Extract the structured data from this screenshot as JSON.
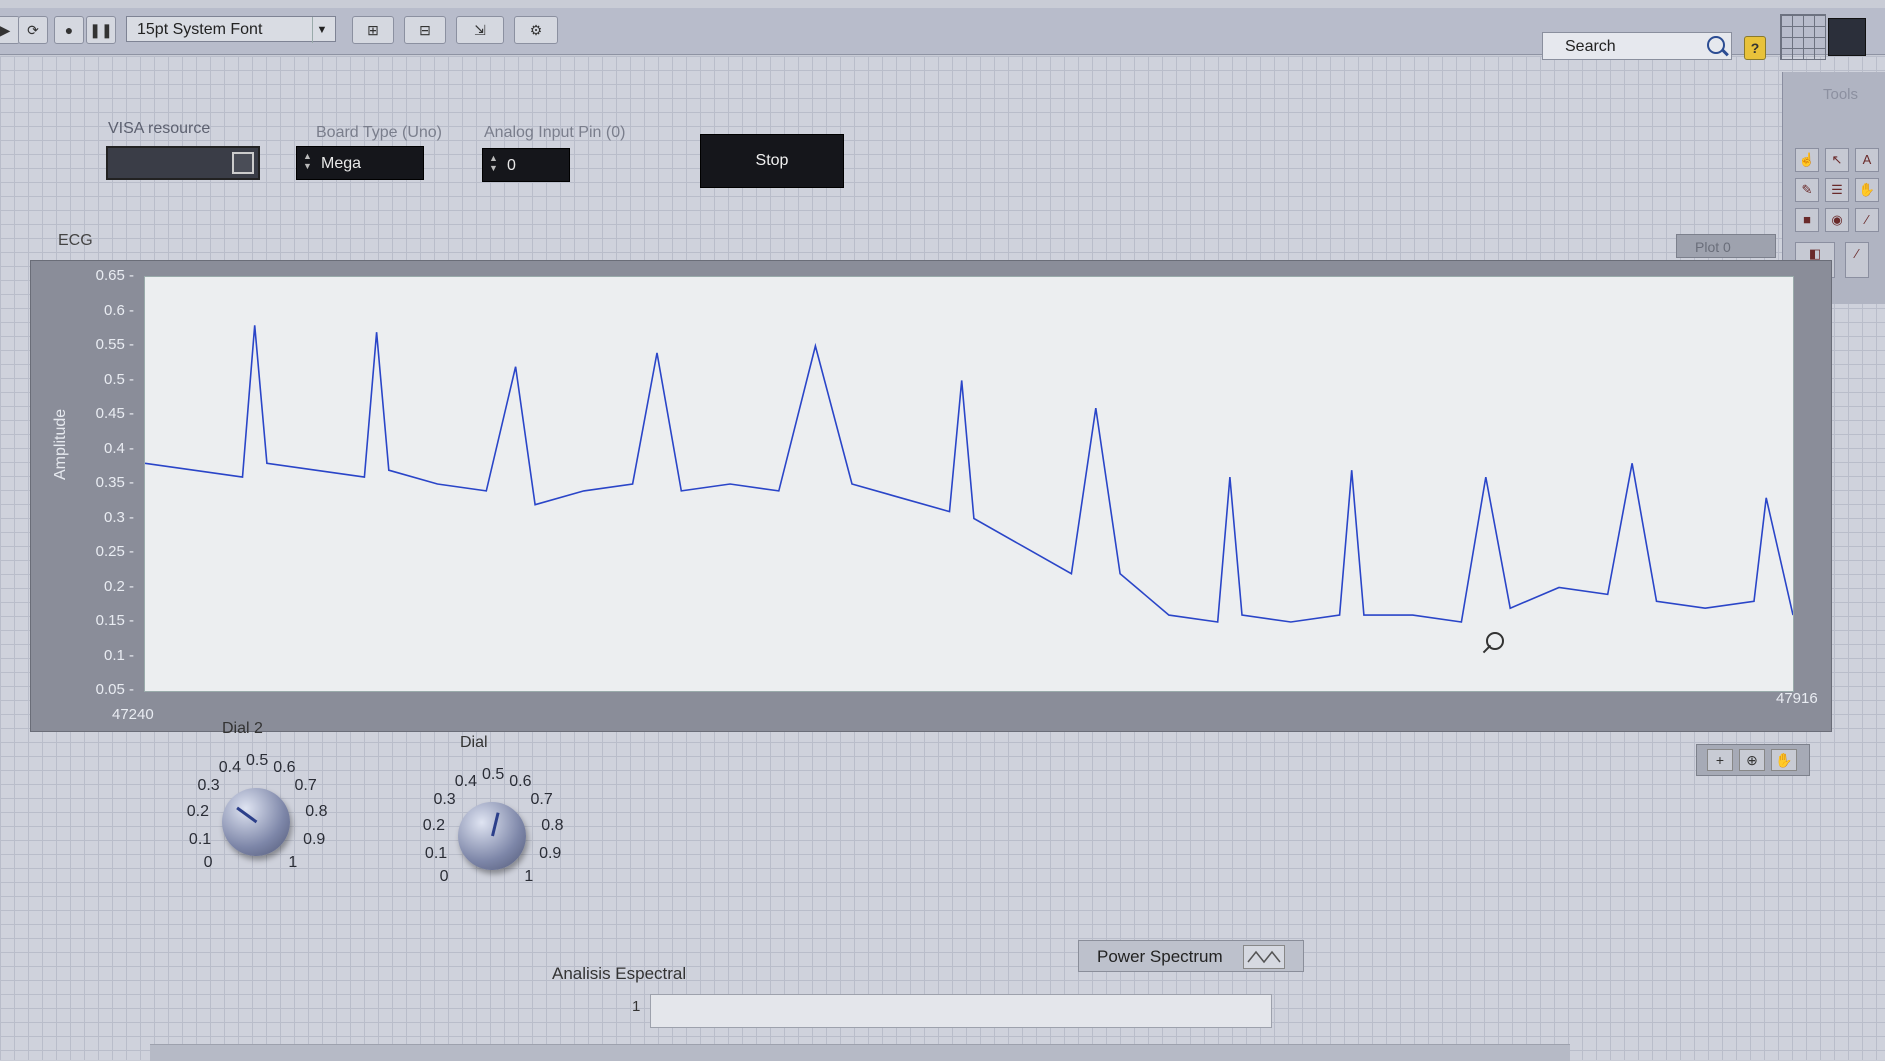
{
  "toolbar": {
    "font_selector": "15pt System Font",
    "search_label": "Search",
    "help_label": "?"
  },
  "controls": {
    "visa_label": "VISA resource",
    "board_label": "Board Type (Uno)",
    "board_value": "Mega",
    "pin_label": "Analog Input Pin (0)",
    "pin_value": "0",
    "stop_label": "Stop"
  },
  "palette": {
    "title": "Tools"
  },
  "graph": {
    "label": "ECG",
    "plot_legend": "Plot 0",
    "y_label": "Amplitude",
    "y_ticks": [
      "0.65",
      "0.6",
      "0.55",
      "0.5",
      "0.45",
      "0.4",
      "0.35",
      "0.3",
      "0.25",
      "0.2",
      "0.15",
      "0.1",
      "0.05"
    ],
    "x_start": "47240",
    "x_end": "47916"
  },
  "chart_data": {
    "type": "line",
    "title": "",
    "xlabel": "",
    "ylabel": "Amplitude",
    "xlim": [
      47240,
      47916
    ],
    "ylim": [
      0.05,
      0.65
    ],
    "grid": false,
    "series": [
      {
        "color": "#2a45c8",
        "x": [
          47240,
          47260,
          47280,
          47285,
          47290,
          47310,
          47330,
          47335,
          47340,
          47360,
          47380,
          47392,
          47400,
          47420,
          47440,
          47450,
          47460,
          47480,
          47500,
          47515,
          47530,
          47550,
          47570,
          47575,
          47580,
          47600,
          47620,
          47630,
          47640,
          47660,
          47680,
          47685,
          47690,
          47710,
          47730,
          47735,
          47740,
          47760,
          47780,
          47790,
          47800,
          47820,
          47840,
          47850,
          47860,
          47880,
          47900,
          47905,
          47916
        ],
        "y": [
          0.38,
          0.37,
          0.36,
          0.58,
          0.38,
          0.37,
          0.36,
          0.57,
          0.37,
          0.35,
          0.34,
          0.52,
          0.32,
          0.34,
          0.35,
          0.54,
          0.34,
          0.35,
          0.34,
          0.55,
          0.35,
          0.33,
          0.31,
          0.5,
          0.3,
          0.26,
          0.22,
          0.46,
          0.22,
          0.16,
          0.15,
          0.36,
          0.16,
          0.15,
          0.16,
          0.37,
          0.16,
          0.16,
          0.15,
          0.36,
          0.17,
          0.2,
          0.19,
          0.38,
          0.18,
          0.17,
          0.18,
          0.33,
          0.16
        ]
      }
    ]
  },
  "dials": {
    "dial2": {
      "title": "Dial 2",
      "value": 0.3,
      "ticks": [
        "0",
        "0.1",
        "0.2",
        "0.3",
        "0.4",
        "0.5",
        "0.6",
        "0.7",
        "0.8",
        "0.9",
        "1"
      ]
    },
    "dial": {
      "title": "Dial",
      "value": 0.55,
      "ticks": [
        "0",
        "0.1",
        "0.2",
        "0.3",
        "0.4",
        "0.5",
        "0.6",
        "0.7",
        "0.8",
        "0.9",
        "1"
      ]
    }
  },
  "bottom": {
    "power_spectrum_label": "Power Spectrum",
    "analysis_label": "Analisis Espectral",
    "analysis_tick": "1"
  }
}
